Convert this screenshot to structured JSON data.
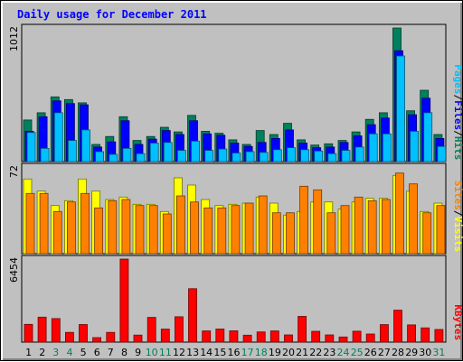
{
  "title": "Daily usage for December 2011",
  "colors": {
    "hits": "#00805c",
    "files": "#0000ff",
    "pages": "#00c0ff",
    "visits": "#ffff00",
    "sites": "#ff8000",
    "kbytes": "#ff0000",
    "weekend_day": "#00805c",
    "weekday": "#000000",
    "panel_bg": "#c0c0c0"
  },
  "chart_data": [
    {
      "type": "bar",
      "panel": "hits-files-pages",
      "ymax_label": "1012",
      "legend": [
        "Pages",
        "/",
        "Files",
        "/",
        "Hits"
      ],
      "x": [
        "1",
        "2",
        "3",
        "4",
        "5",
        "6",
        "7",
        "8",
        "9",
        "10",
        "11",
        "12",
        "13",
        "14",
        "15",
        "16",
        "17",
        "18",
        "19",
        "20",
        "21",
        "22",
        "23",
        "24",
        "25",
        "26",
        "27",
        "28",
        "29",
        "30",
        "31"
      ],
      "series": [
        {
          "name": "Hits",
          "values": [
            315,
            370,
            490,
            470,
            445,
            130,
            190,
            340,
            160,
            190,
            260,
            225,
            350,
            230,
            215,
            165,
            130,
            235,
            205,
            290,
            165,
            125,
            135,
            160,
            225,
            320,
            370,
            1012,
            385,
            540,
            205
          ]
        },
        {
          "name": "Files",
          "values": [
            230,
            340,
            460,
            440,
            430,
            110,
            150,
            310,
            130,
            170,
            235,
            205,
            310,
            210,
            200,
            140,
            115,
            145,
            175,
            240,
            140,
            105,
            110,
            145,
            195,
            280,
            330,
            840,
            355,
            480,
            175
          ]
        },
        {
          "name": "Pages",
          "values": [
            220,
            100,
            370,
            160,
            240,
            75,
            55,
            100,
            60,
            140,
            145,
            85,
            155,
            85,
            95,
            65,
            75,
            70,
            90,
            105,
            90,
            80,
            60,
            85,
            110,
            210,
            210,
            800,
            230,
            370,
            115
          ]
        }
      ]
    },
    {
      "type": "bar",
      "panel": "visits-sites",
      "ymax_label": "72",
      "legend": [
        "Sites",
        "/",
        "Visits"
      ],
      "x": [
        "1",
        "2",
        "3",
        "4",
        "5",
        "6",
        "7",
        "8",
        "9",
        "10",
        "11",
        "12",
        "13",
        "14",
        "15",
        "16",
        "17",
        "18",
        "19",
        "20",
        "21",
        "22",
        "23",
        "24",
        "25",
        "26",
        "27",
        "28",
        "29",
        "30",
        "31"
      ],
      "series": [
        {
          "name": "Visits",
          "values": [
            62,
            52,
            40,
            44,
            62,
            52,
            45,
            47,
            41,
            41,
            35,
            63,
            57,
            45,
            40,
            41,
            42,
            47,
            42,
            32,
            35,
            43,
            43,
            37,
            43,
            46,
            46,
            65,
            52,
            35,
            42
          ]
        },
        {
          "name": "Sites",
          "values": [
            50,
            50,
            35,
            43,
            50,
            38,
            44,
            45,
            40,
            40,
            33,
            48,
            43,
            38,
            38,
            40,
            42,
            48,
            34,
            34,
            56,
            53,
            34,
            40,
            47,
            44,
            45,
            67,
            58,
            34,
            40
          ]
        }
      ]
    },
    {
      "type": "bar",
      "panel": "kbytes",
      "ymax_label": "6454",
      "legend": [
        "KBytes"
      ],
      "x": [
        "1",
        "2",
        "3",
        "4",
        "5",
        "6",
        "7",
        "8",
        "9",
        "10",
        "11",
        "12",
        "13",
        "14",
        "15",
        "16",
        "17",
        "18",
        "19",
        "20",
        "21",
        "22",
        "23",
        "24",
        "25",
        "26",
        "27",
        "28",
        "29",
        "30",
        "31"
      ],
      "series": [
        {
          "name": "KBytes",
          "values": [
            1380,
            1940,
            1830,
            760,
            1370,
            350,
            760,
            6454,
            550,
            1920,
            1010,
            1970,
            4150,
            870,
            1020,
            880,
            540,
            790,
            870,
            560,
            2000,
            840,
            560,
            400,
            850,
            630,
            1360,
            2480,
            1340,
            1110,
            980
          ]
        }
      ]
    }
  ],
  "x_labels": [
    "1",
    "2",
    "3",
    "4",
    "5",
    "6",
    "7",
    "8",
    "9",
    "10",
    "11",
    "12",
    "13",
    "14",
    "15",
    "16",
    "17",
    "18",
    "19",
    "20",
    "21",
    "22",
    "23",
    "24",
    "25",
    "26",
    "27",
    "28",
    "29",
    "30",
    "31"
  ],
  "weekend_days": [
    "3",
    "4",
    "10",
    "11",
    "17",
    "18",
    "24",
    "25",
    "31"
  ]
}
